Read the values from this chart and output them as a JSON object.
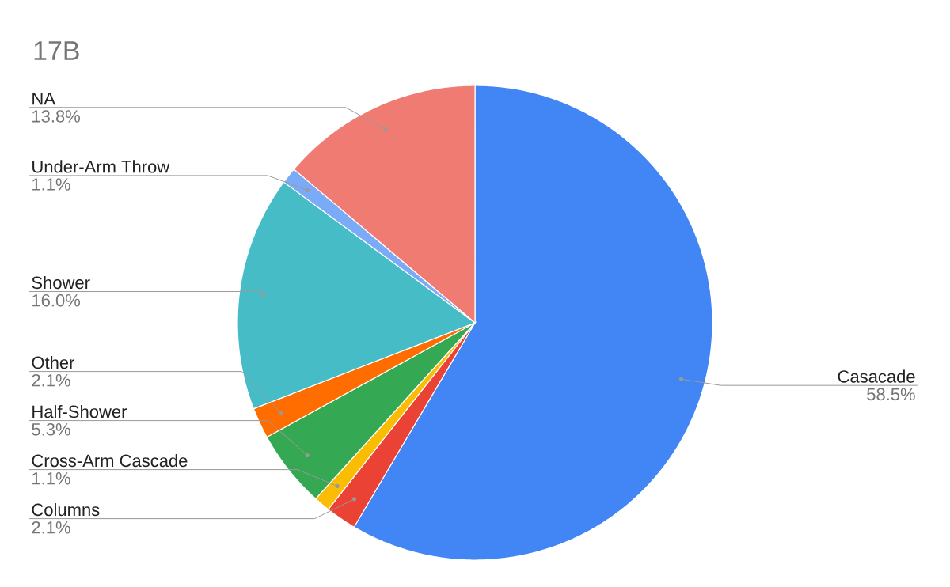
{
  "chart_data": {
    "type": "pie",
    "title": "17B",
    "categories": [
      "Casacade",
      "Columns",
      "Cross-Arm Cascade",
      "Half-Shower",
      "Other",
      "Shower",
      "Under-Arm Throw",
      "NA"
    ],
    "values": [
      58.5,
      2.1,
      1.1,
      5.3,
      2.1,
      16.0,
      1.1,
      13.8
    ],
    "colors": [
      "#4285f4",
      "#ea4335",
      "#fbbc04",
      "#34a853",
      "#ff6d01",
      "#46bdc6",
      "#7baaf7",
      "#f07b72"
    ],
    "value_labels": [
      "58.5%",
      "2.1%",
      "1.1%",
      "5.3%",
      "2.1%",
      "16.0%",
      "1.1%",
      "13.8%"
    ]
  }
}
